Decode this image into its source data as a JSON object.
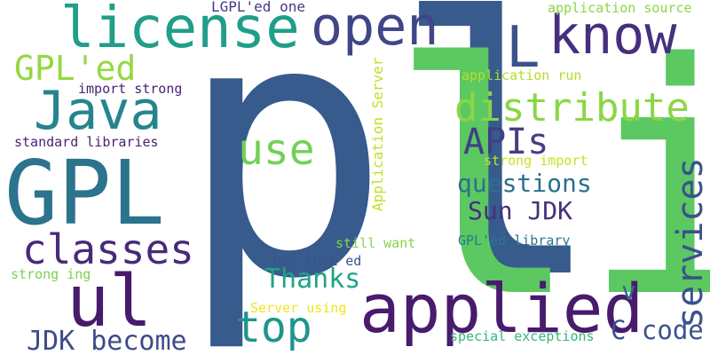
{
  "word_cloud": {
    "words": [
      {
        "text": "pl",
        "color": "#365b8c"
      },
      {
        "text": "li",
        "color": "#5bc862"
      },
      {
        "text": "GPL",
        "color": "#2c738e"
      },
      {
        "text": "applied",
        "color": "#481b6d"
      },
      {
        "text": "license",
        "color": "#1f9e89"
      },
      {
        "text": "ul",
        "color": "#471a6b"
      },
      {
        "text": "open",
        "color": "#404688"
      },
      {
        "text": "know",
        "color": "#46307e"
      },
      {
        "text": "Java",
        "color": "#25858e"
      },
      {
        "text": "distribute",
        "color": "#8bd646"
      },
      {
        "text": "L",
        "color": "#3b528b"
      },
      {
        "text": "GPL'ed",
        "color": "#95d840"
      },
      {
        "text": "classes",
        "color": "#472a7a"
      },
      {
        "text": "APIs",
        "color": "#433e85"
      },
      {
        "text": "use",
        "color": "#73d056"
      },
      {
        "text": "services",
        "color": "#3b528b"
      },
      {
        "text": "top",
        "color": "#1f958b"
      },
      {
        "text": "questions",
        "color": "#2d708e"
      },
      {
        "text": "Sun JDK",
        "color": "#472f7d"
      },
      {
        "text": "Thanks",
        "color": "#20a486"
      },
      {
        "text": "JDK become",
        "color": "#3e4a89"
      },
      {
        "text": "C code",
        "color": "#3b528b"
      },
      {
        "text": "v",
        "color": "#31678e"
      },
      {
        "text": "LGPL'ed one",
        "color": "#453882"
      },
      {
        "text": "application source",
        "color": "#8bd646"
      },
      {
        "text": "application run",
        "color": "#b5de2b"
      },
      {
        "text": "import strong",
        "color": "#482374"
      },
      {
        "text": "standard libraries",
        "color": "#481f70"
      },
      {
        "text": "Application Server",
        "color": "#c2df23"
      },
      {
        "text": "strong import",
        "color": "#cae11f"
      },
      {
        "text": "still want",
        "color": "#86d549"
      },
      {
        "text": "GPL'ed library",
        "color": "#2a788e"
      },
      {
        "text": "use LGPL'ed",
        "color": "#3b528b"
      },
      {
        "text": "strong ing",
        "color": "#7ad151"
      },
      {
        "text": "Server using",
        "color": "#f1e51d"
      },
      {
        "text": "special exceptions",
        "color": "#35b779"
      }
    ]
  }
}
